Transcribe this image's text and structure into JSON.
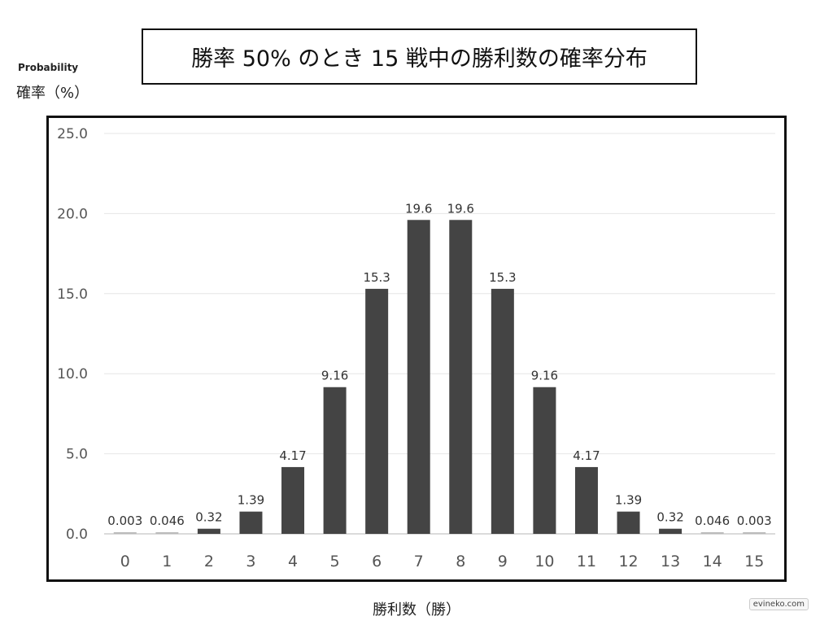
{
  "chart_data": {
    "type": "bar",
    "title": "勝率 50% のとき 15 戦中の勝利数の確率分布",
    "ylabel_en": "Probability",
    "ylabel": "確率（%）",
    "xlabel": "勝利数（勝）",
    "categories": [
      "0",
      "1",
      "2",
      "3",
      "4",
      "5",
      "6",
      "7",
      "8",
      "9",
      "10",
      "11",
      "12",
      "13",
      "14",
      "15"
    ],
    "values": [
      0.003,
      0.046,
      0.32,
      1.39,
      4.17,
      9.16,
      15.3,
      19.6,
      19.6,
      15.3,
      9.16,
      4.17,
      1.39,
      0.32,
      0.046,
      0.003
    ],
    "data_labels": [
      "0.003",
      "0.046",
      "0.32",
      "1.39",
      "4.17",
      "9.16",
      "15.3",
      "19.6",
      "19.6",
      "15.3",
      "9.16",
      "4.17",
      "1.39",
      "0.32",
      "0.046",
      "0.003"
    ],
    "yticks": [
      "0.0",
      "5.0",
      "10.0",
      "15.0",
      "20.0",
      "25.0"
    ],
    "ylim": [
      0,
      25
    ],
    "grid": true,
    "legend": "none",
    "bar_color": "#444444"
  },
  "watermark": "evineko.com"
}
